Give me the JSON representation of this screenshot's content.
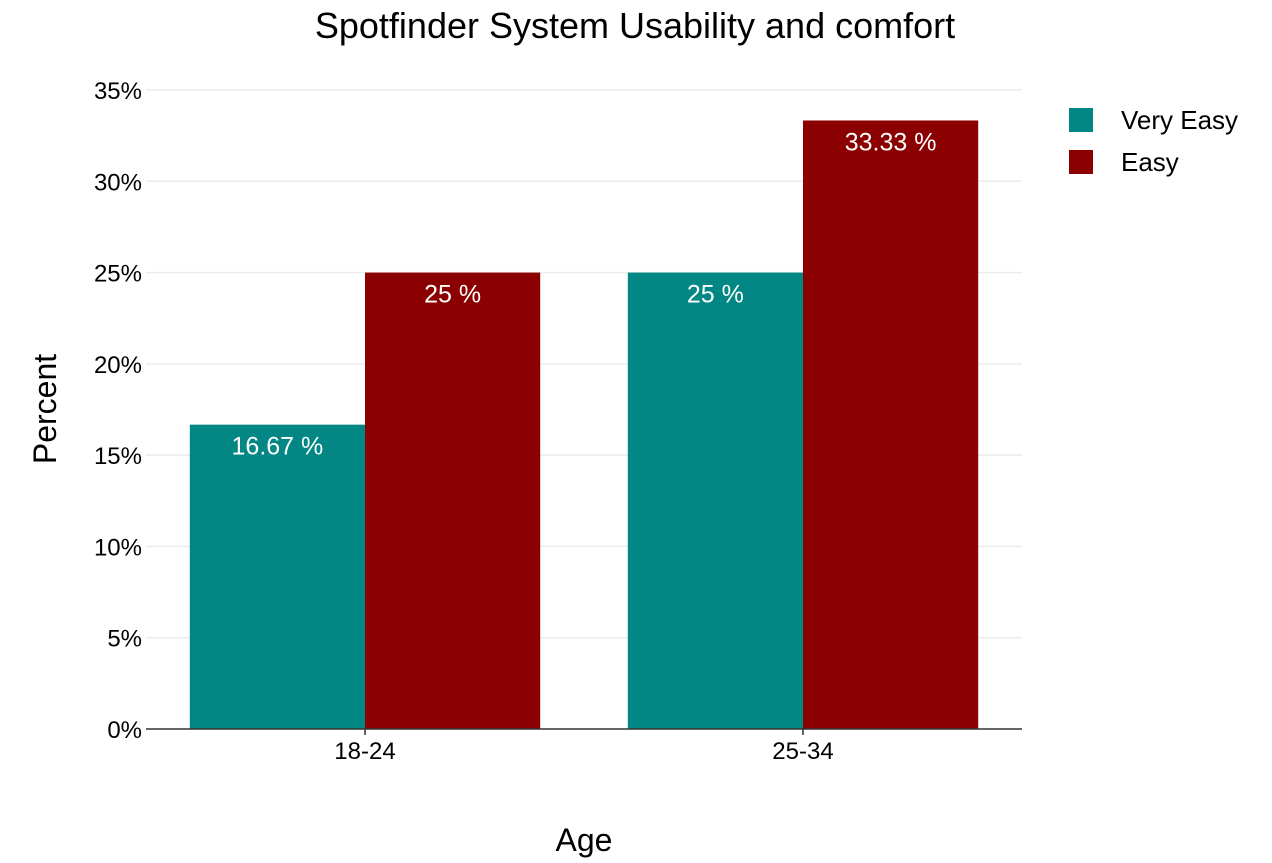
{
  "chart_data": {
    "type": "bar",
    "title": "Spotfinder System Usability and comfort",
    "xlabel": "Age",
    "ylabel": "Percent",
    "categories": [
      "18-24",
      "25-34"
    ],
    "series": [
      {
        "name": "Very Easy",
        "color": "#028785",
        "values": [
          16.67,
          25
        ],
        "labels": [
          "16.67 %",
          "25 %"
        ]
      },
      {
        "name": "Easy",
        "color": "#8b0000",
        "values": [
          25,
          33.33
        ],
        "labels": [
          "25 %",
          "33.33 %"
        ]
      }
    ],
    "ylim": [
      0,
      35
    ],
    "yticks": [
      0,
      5,
      10,
      15,
      20,
      25,
      30,
      35
    ],
    "ytick_labels": [
      "0%",
      "5%",
      "10%",
      "15%",
      "20%",
      "25%",
      "30%",
      "35%"
    ],
    "grid": true,
    "legend_position": "top-right"
  }
}
